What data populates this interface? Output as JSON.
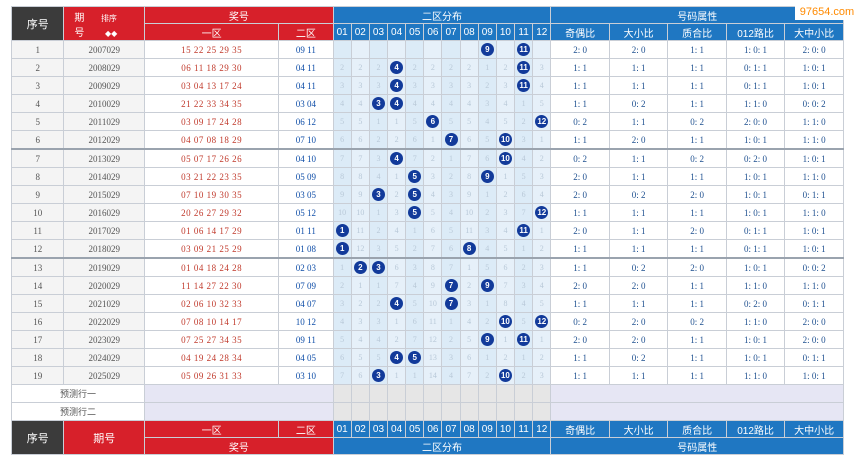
{
  "logo_text": "97654.com",
  "header": {
    "seq": "序号",
    "period_top": "期",
    "period_bot": "号",
    "sort_label": "排序",
    "draw": "奖号",
    "zone1": "一区",
    "zone2": "二区",
    "zone2_dist": "二区分布",
    "attrs": "号码属性",
    "attr_cols": [
      "奇偶比",
      "大小比",
      "质合比",
      "012路比",
      "大中小比"
    ],
    "cols": [
      "01",
      "02",
      "03",
      "04",
      "05",
      "06",
      "07",
      "08",
      "09",
      "10",
      "11",
      "12"
    ]
  },
  "footer": {
    "seq": "序号",
    "period": "期号",
    "zone1": "一区",
    "zone2": "二区",
    "draw": "奖号",
    "zone2_dist": "二区分布",
    "attrs": "号码属性"
  },
  "predict_rows": [
    "预测行一",
    "预测行二"
  ],
  "rows": [
    {
      "seq": "1",
      "period": "2007029",
      "z1": "15 22 25 29 35",
      "z2": "09 11",
      "balls": [
        9,
        11
      ],
      "miss": [
        "",
        "",
        "",
        "",
        "",
        "",
        "",
        "",
        "",
        "",
        "",
        ""
      ],
      "attr": [
        "2: 0",
        "2: 0",
        "1: 1",
        "1: 0: 1",
        "2: 0: 0"
      ]
    },
    {
      "seq": "2",
      "period": "2008029",
      "z1": "06 11 18 29 30",
      "z2": "04 11",
      "balls": [
        4,
        11
      ],
      "miss": [
        "2",
        "2",
        "2",
        "",
        "2",
        "2",
        "2",
        "2",
        "1",
        "2",
        "",
        "3"
      ],
      "attr": [
        "1: 1",
        "1: 1",
        "1: 1",
        "0: 1: 1",
        "1: 0: 1"
      ]
    },
    {
      "seq": "3",
      "period": "2009029",
      "z1": "03 04 13 17 24",
      "z2": "04 11",
      "balls": [
        4,
        11
      ],
      "miss": [
        "3",
        "3",
        "3",
        "",
        "3",
        "3",
        "3",
        "3",
        "2",
        "3",
        "",
        "4"
      ],
      "attr": [
        "1: 1",
        "1: 1",
        "1: 1",
        "0: 1: 1",
        "1: 0: 1"
      ]
    },
    {
      "seq": "4",
      "period": "2010029",
      "z1": "21 22 33 34 35",
      "z2": "03 04",
      "balls": [
        3,
        4
      ],
      "miss": [
        "4",
        "4",
        "",
        "",
        "4",
        "4",
        "4",
        "4",
        "3",
        "4",
        "1",
        "5"
      ],
      "attr": [
        "1: 1",
        "0: 2",
        "1: 1",
        "1: 1: 0",
        "0: 0: 2"
      ]
    },
    {
      "seq": "5",
      "period": "2011029",
      "z1": "03 09 17 24 28",
      "z2": "06 12",
      "balls": [
        6,
        12
      ],
      "miss": [
        "5",
        "5",
        "1",
        "1",
        "5",
        "",
        "5",
        "5",
        "4",
        "5",
        "2",
        ""
      ],
      "attr": [
        "0: 2",
        "1: 1",
        "0: 2",
        "2: 0: 0",
        "1: 1: 0"
      ]
    },
    {
      "seq": "6",
      "period": "2012029",
      "z1": "04 07 08 18 29",
      "z2": "07 10",
      "balls": [
        7,
        10
      ],
      "miss": [
        "6",
        "6",
        "2",
        "2",
        "6",
        "1",
        "",
        "6",
        "5",
        "",
        "3",
        "1"
      ],
      "attr": [
        "1: 1",
        "2: 0",
        "1: 1",
        "1: 0: 1",
        "1: 1: 0"
      ]
    },
    {
      "seq": "7",
      "period": "2013029",
      "z1": "05 07 17 26 26",
      "z2": "04 10",
      "balls": [
        4,
        10
      ],
      "miss": [
        "7",
        "7",
        "3",
        "",
        "7",
        "2",
        "1",
        "7",
        "6",
        "",
        "4",
        "2"
      ],
      "attr": [
        "0: 2",
        "1: 1",
        "0: 2",
        "0: 2: 0",
        "1: 0: 1"
      ]
    },
    {
      "seq": "8",
      "period": "2014029",
      "z1": "03 21 22 23 35",
      "z2": "05 09",
      "balls": [
        5,
        9
      ],
      "miss": [
        "8",
        "8",
        "4",
        "1",
        "",
        "3",
        "2",
        "8",
        "",
        "1",
        "5",
        "3"
      ],
      "attr": [
        "2: 0",
        "1: 1",
        "1: 1",
        "1: 0: 1",
        "1: 1: 0"
      ]
    },
    {
      "seq": "9",
      "period": "2015029",
      "z1": "07 10 19 30 35",
      "z2": "03 05",
      "balls": [
        3,
        5
      ],
      "miss": [
        "9",
        "9",
        "",
        "2",
        "",
        "4",
        "3",
        "9",
        "1",
        "2",
        "6",
        "4"
      ],
      "attr": [
        "2: 0",
        "0: 2",
        "2: 0",
        "1: 0: 1",
        "0: 1: 1"
      ]
    },
    {
      "seq": "10",
      "period": "2016029",
      "z1": "20 26 27 29 32",
      "z2": "05 12",
      "balls": [
        5,
        12
      ],
      "miss": [
        "10",
        "10",
        "1",
        "3",
        "",
        "5",
        "4",
        "10",
        "2",
        "3",
        "7",
        ""
      ],
      "attr": [
        "1: 1",
        "1: 1",
        "1: 1",
        "1: 0: 1",
        "1: 1: 0"
      ]
    },
    {
      "seq": "11",
      "period": "2017029",
      "z1": "01 06 14 17 29",
      "z2": "01 11",
      "balls": [
        1,
        11
      ],
      "miss": [
        "",
        "11",
        "2",
        "4",
        "1",
        "6",
        "5",
        "11",
        "3",
        "4",
        "",
        "1"
      ],
      "attr": [
        "2: 0",
        "1: 1",
        "2: 0",
        "0: 1: 1",
        "1: 0: 1"
      ]
    },
    {
      "seq": "12",
      "period": "2018029",
      "z1": "03 09 21 25 29",
      "z2": "01 08",
      "balls": [
        1,
        8
      ],
      "miss": [
        "",
        "12",
        "3",
        "5",
        "2",
        "7",
        "6",
        "",
        "4",
        "5",
        "1",
        "2"
      ],
      "attr": [
        "1: 1",
        "1: 1",
        "1: 1",
        "0: 1: 1",
        "1: 0: 1"
      ]
    },
    {
      "seq": "13",
      "period": "2019029",
      "z1": "01 04 18 24 28",
      "z2": "02 03",
      "balls": [
        2,
        3
      ],
      "miss": [
        "1",
        "",
        "",
        "6",
        "3",
        "8",
        "7",
        "1",
        "5",
        "6",
        "2",
        "3"
      ],
      "attr": [
        "1: 1",
        "0: 2",
        "2: 0",
        "1: 0: 1",
        "0: 0: 2"
      ]
    },
    {
      "seq": "14",
      "period": "2020029",
      "z1": "11 14 27 22 30",
      "z2": "07 09",
      "balls": [
        7,
        9
      ],
      "miss": [
        "2",
        "1",
        "1",
        "7",
        "4",
        "9",
        "",
        "2",
        "",
        "7",
        "3",
        "4"
      ],
      "attr": [
        "2: 0",
        "2: 0",
        "1: 1",
        "1: 1: 0",
        "1: 1: 0"
      ]
    },
    {
      "seq": "15",
      "period": "2021029",
      "z1": "02 06 10 32 33",
      "z2": "04 07",
      "balls": [
        4,
        7
      ],
      "miss": [
        "3",
        "2",
        "2",
        "",
        "5",
        "10",
        "",
        "3",
        "1",
        "8",
        "4",
        "5"
      ],
      "attr": [
        "1: 1",
        "1: 1",
        "1: 1",
        "0: 2: 0",
        "0: 1: 1"
      ]
    },
    {
      "seq": "16",
      "period": "2022029",
      "z1": "07 08 10 14 17",
      "z2": "10 12",
      "balls": [
        10,
        12
      ],
      "miss": [
        "4",
        "3",
        "3",
        "1",
        "6",
        "11",
        "1",
        "4",
        "2",
        "",
        "5",
        ""
      ],
      "attr": [
        "0: 2",
        "2: 0",
        "0: 2",
        "1: 1: 0",
        "2: 0: 0"
      ]
    },
    {
      "seq": "17",
      "period": "2023029",
      "z1": "07 25 27 34 35",
      "z2": "09 11",
      "balls": [
        9,
        11
      ],
      "miss": [
        "5",
        "4",
        "4",
        "2",
        "7",
        "12",
        "2",
        "5",
        "",
        "1",
        "",
        "1"
      ],
      "attr": [
        "2: 0",
        "2: 0",
        "1: 1",
        "1: 0: 1",
        "2: 0: 0"
      ]
    },
    {
      "seq": "18",
      "period": "2024029",
      "z1": "04 19 24 28 34",
      "z2": "04 05",
      "balls": [
        4,
        5
      ],
      "miss": [
        "6",
        "5",
        "5",
        "",
        "",
        "13",
        "3",
        "6",
        "1",
        "2",
        "1",
        "2"
      ],
      "attr": [
        "1: 1",
        "0: 2",
        "1: 1",
        "1: 0: 1",
        "0: 1: 1"
      ]
    },
    {
      "seq": "19",
      "period": "2025029",
      "z1": "05 09 26 31 33",
      "z2": "03 10",
      "balls": [
        3,
        10
      ],
      "miss": [
        "7",
        "6",
        "",
        "1",
        "1",
        "14",
        "4",
        "7",
        "2",
        "",
        "2",
        "3"
      ],
      "attr": [
        "1: 1",
        "1: 1",
        "1: 1",
        "1: 1: 0",
        "1: 0: 1"
      ]
    }
  ]
}
